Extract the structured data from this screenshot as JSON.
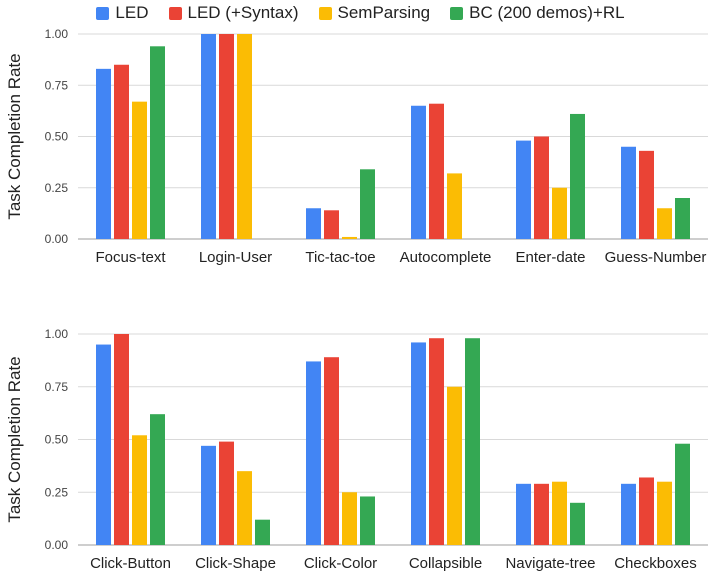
{
  "legend": [
    {
      "name": "LED",
      "color": "#4285f4"
    },
    {
      "name": "LED (+Syntax)",
      "color": "#ea4335"
    },
    {
      "name": "SemParsing",
      "color": "#fbbc04"
    },
    {
      "name": "BC (200 demos)+RL",
      "color": "#34a853"
    }
  ],
  "chart_data": [
    {
      "type": "bar",
      "title": "",
      "xlabel": "",
      "ylabel": "Task Completion Rate",
      "ylim": [
        0,
        1
      ],
      "yticks": [
        "0.00",
        "0.25",
        "0.50",
        "0.75",
        "1.00"
      ],
      "grid": true,
      "legend_position": "top",
      "categories": [
        "Focus-text",
        "Login-User",
        "Tic-tac-toe",
        "Autocomplete",
        "Enter-date",
        "Guess-Number"
      ],
      "series": [
        {
          "name": "LED",
          "color": "#4285f4",
          "values": [
            0.83,
            1.0,
            0.15,
            0.65,
            0.48,
            0.45
          ]
        },
        {
          "name": "LED (+Syntax)",
          "color": "#ea4335",
          "values": [
            0.85,
            1.0,
            0.14,
            0.66,
            0.5,
            0.43
          ]
        },
        {
          "name": "SemParsing",
          "color": "#fbbc04",
          "values": [
            0.67,
            1.0,
            0.01,
            0.32,
            0.25,
            0.15
          ]
        },
        {
          "name": "BC (200 demos)+RL",
          "color": "#34a853",
          "values": [
            0.94,
            0.0,
            0.34,
            0.0,
            0.61,
            0.2
          ]
        }
      ]
    },
    {
      "type": "bar",
      "title": "",
      "xlabel": "",
      "ylabel": "Task Completion Rate",
      "ylim": [
        0,
        1
      ],
      "yticks": [
        "0.00",
        "0.25",
        "0.50",
        "0.75",
        "1.00"
      ],
      "grid": true,
      "legend_position": "top",
      "categories": [
        "Click-Button",
        "Click-Shape",
        "Click-Color",
        "Collapsible",
        "Navigate-tree",
        "Checkboxes"
      ],
      "series": [
        {
          "name": "LED",
          "color": "#4285f4",
          "values": [
            0.95,
            0.47,
            0.87,
            0.96,
            0.29,
            0.29
          ]
        },
        {
          "name": "LED (+Syntax)",
          "color": "#ea4335",
          "values": [
            1.0,
            0.49,
            0.89,
            0.98,
            0.29,
            0.32
          ]
        },
        {
          "name": "SemParsing",
          "color": "#fbbc04",
          "values": [
            0.52,
            0.35,
            0.25,
            0.75,
            0.3,
            0.3
          ]
        },
        {
          "name": "BC (200 demos)+RL",
          "color": "#34a853",
          "values": [
            0.62,
            0.12,
            0.23,
            0.98,
            0.2,
            0.48
          ]
        }
      ]
    }
  ]
}
